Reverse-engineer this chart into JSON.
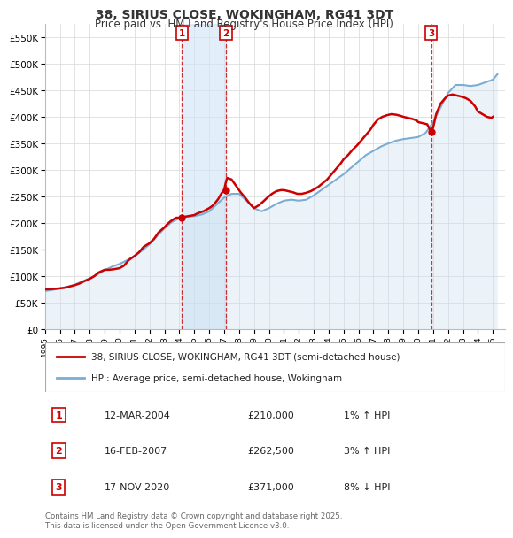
{
  "title": "38, SIRIUS CLOSE, WOKINGHAM, RG41 3DT",
  "subtitle": "Price paid vs. HM Land Registry's House Price Index (HPI)",
  "ylim": [
    0,
    575000
  ],
  "yticks": [
    0,
    50000,
    100000,
    150000,
    200000,
    250000,
    300000,
    350000,
    400000,
    450000,
    500000,
    550000
  ],
  "ytick_labels": [
    "£0",
    "£50K",
    "£100K",
    "£150K",
    "£200K",
    "£250K",
    "£300K",
    "£350K",
    "£400K",
    "£450K",
    "£500K",
    "£550K"
  ],
  "xlim_start": 1995.0,
  "xlim_end": 2025.8,
  "xticks": [
    1995,
    1996,
    1997,
    1998,
    1999,
    2000,
    2001,
    2002,
    2003,
    2004,
    2005,
    2006,
    2007,
    2008,
    2009,
    2010,
    2011,
    2012,
    2013,
    2014,
    2015,
    2016,
    2017,
    2018,
    2019,
    2020,
    2021,
    2022,
    2023,
    2024,
    2025
  ],
  "property_color": "#cc0000",
  "hpi_color": "#7aadd4",
  "hpi_fill_color": "#c8ddf0",
  "grid_color": "#d8d8d8",
  "background_color": "#ffffff",
  "transaction1": {
    "num": 1,
    "date": "12-MAR-2004",
    "price": 210000,
    "hpi_pct": "1%",
    "hpi_dir": "↑"
  },
  "transaction2": {
    "num": 2,
    "date": "16-FEB-2007",
    "price": 262500,
    "hpi_pct": "3%",
    "hpi_dir": "↑"
  },
  "transaction3": {
    "num": 3,
    "date": "17-NOV-2020",
    "price": 371000,
    "hpi_pct": "8%",
    "hpi_dir": "↓"
  },
  "legend_property": "38, SIRIUS CLOSE, WOKINGHAM, RG41 3DT (semi-detached house)",
  "legend_hpi": "HPI: Average price, semi-detached house, Wokingham",
  "footer": "Contains HM Land Registry data © Crown copyright and database right 2025.\nThis data is licensed under the Open Government Licence v3.0.",
  "property_line_data": {
    "x": [
      1995.0,
      1995.3,
      1995.6,
      1996.0,
      1996.3,
      1996.6,
      1997.0,
      1997.3,
      1997.6,
      1998.0,
      1998.3,
      1998.6,
      1999.0,
      1999.3,
      1999.6,
      2000.0,
      2000.3,
      2000.6,
      2001.0,
      2001.3,
      2001.6,
      2002.0,
      2002.3,
      2002.6,
      2003.0,
      2003.2,
      2003.4,
      2003.6,
      2003.8,
      2004.0,
      2004.2,
      2004.4,
      2004.6,
      2004.8,
      2005.0,
      2005.2,
      2005.4,
      2005.6,
      2005.8,
      2006.0,
      2006.2,
      2006.4,
      2006.6,
      2006.8,
      2007.0,
      2007.1,
      2007.2,
      2007.5,
      2007.8,
      2008.1,
      2008.4,
      2008.7,
      2009.0,
      2009.3,
      2009.6,
      2009.9,
      2010.2,
      2010.5,
      2010.8,
      2011.0,
      2011.3,
      2011.6,
      2011.9,
      2012.2,
      2012.5,
      2012.8,
      2013.0,
      2013.3,
      2013.6,
      2013.9,
      2014.2,
      2014.5,
      2014.8,
      2015.0,
      2015.3,
      2015.6,
      2015.9,
      2016.2,
      2016.5,
      2016.8,
      2017.0,
      2017.3,
      2017.6,
      2017.9,
      2018.2,
      2018.5,
      2018.8,
      2019.0,
      2019.3,
      2019.6,
      2019.9,
      2020.0,
      2020.3,
      2020.6,
      2020.87,
      2021.0,
      2021.2,
      2021.5,
      2021.8,
      2022.0,
      2022.3,
      2022.6,
      2022.9,
      2023.2,
      2023.5,
      2023.8,
      2024.0,
      2024.3,
      2024.6,
      2024.9,
      2025.0
    ],
    "y": [
      75000,
      75500,
      76000,
      77000,
      78000,
      80000,
      83000,
      86000,
      90000,
      95000,
      100000,
      107000,
      112000,
      112000,
      113000,
      115000,
      120000,
      130000,
      138000,
      145000,
      155000,
      162000,
      170000,
      182000,
      192000,
      198000,
      203000,
      207000,
      210000,
      210000,
      210000,
      212000,
      213000,
      214000,
      215000,
      218000,
      220000,
      222000,
      225000,
      228000,
      232000,
      238000,
      245000,
      255000,
      262500,
      275000,
      285000,
      282000,
      270000,
      258000,
      248000,
      237000,
      228000,
      233000,
      240000,
      248000,
      255000,
      260000,
      262000,
      262000,
      260000,
      258000,
      255000,
      255000,
      257000,
      260000,
      263000,
      268000,
      275000,
      282000,
      292000,
      302000,
      312000,
      320000,
      328000,
      338000,
      346000,
      356000,
      366000,
      376000,
      385000,
      395000,
      400000,
      403000,
      405000,
      404000,
      402000,
      400000,
      398000,
      396000,
      393000,
      390000,
      388000,
      386000,
      371000,
      380000,
      405000,
      425000,
      435000,
      440000,
      442000,
      440000,
      438000,
      435000,
      430000,
      420000,
      410000,
      405000,
      400000,
      398000,
      400000
    ]
  },
  "hpi_line_data": {
    "x": [
      1995.0,
      1995.5,
      1996.0,
      1996.5,
      1997.0,
      1997.5,
      1998.0,
      1998.5,
      1999.0,
      1999.5,
      2000.0,
      2000.5,
      2001.0,
      2001.5,
      2002.0,
      2002.5,
      2003.0,
      2003.5,
      2004.0,
      2004.5,
      2005.0,
      2005.5,
      2006.0,
      2006.5,
      2007.0,
      2007.5,
      2008.0,
      2008.5,
      2009.0,
      2009.5,
      2010.0,
      2010.5,
      2011.0,
      2011.5,
      2012.0,
      2012.5,
      2013.0,
      2013.5,
      2014.0,
      2014.5,
      2015.0,
      2015.5,
      2016.0,
      2016.5,
      2017.0,
      2017.5,
      2018.0,
      2018.5,
      2019.0,
      2019.5,
      2020.0,
      2020.5,
      2021.0,
      2021.5,
      2022.0,
      2022.5,
      2023.0,
      2023.5,
      2024.0,
      2024.5,
      2025.0,
      2025.3
    ],
    "y": [
      72000,
      74000,
      77000,
      80000,
      84000,
      90000,
      96000,
      103000,
      111000,
      118000,
      123000,
      130000,
      138000,
      148000,
      160000,
      175000,
      190000,
      202000,
      209000,
      212000,
      213000,
      216000,
      222000,
      235000,
      248000,
      255000,
      255000,
      242000,
      228000,
      222000,
      228000,
      236000,
      242000,
      244000,
      242000,
      244000,
      252000,
      262000,
      272000,
      282000,
      292000,
      304000,
      316000,
      328000,
      336000,
      344000,
      350000,
      355000,
      358000,
      360000,
      362000,
      370000,
      390000,
      418000,
      445000,
      460000,
      460000,
      458000,
      460000,
      465000,
      470000,
      480000
    ]
  },
  "vline1_x": 2004.18,
  "vline2_x": 2007.12,
  "vline3_x": 2020.87,
  "marker1_y": 210000,
  "marker2_y": 262500,
  "marker3_y": 371000,
  "shade_between_v1_v2": true
}
